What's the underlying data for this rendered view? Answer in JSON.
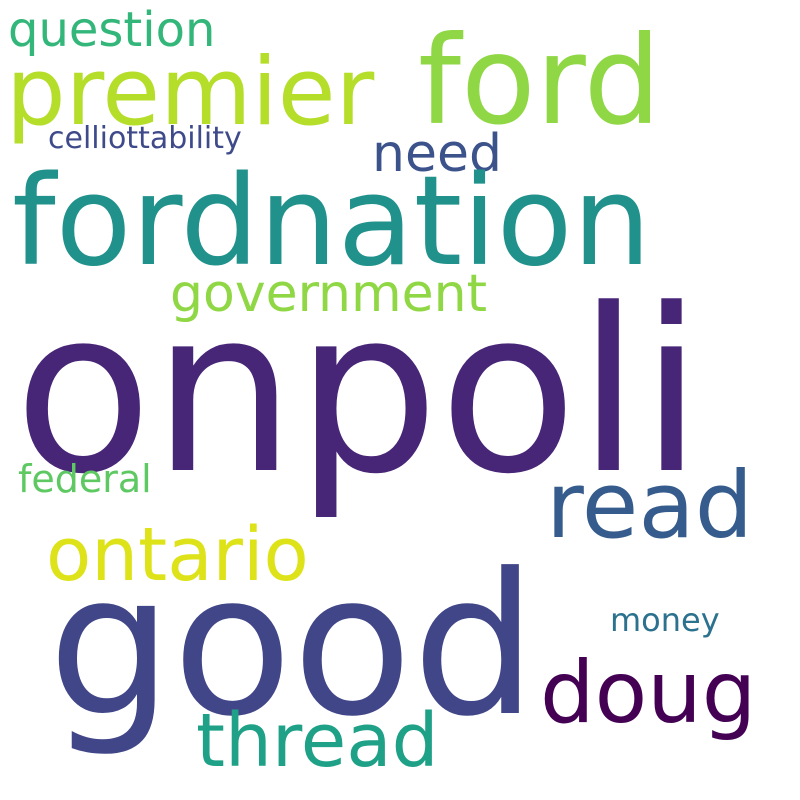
{
  "words": [
    {
      "text": "question",
      "color": "#33b679"
    },
    {
      "text": "ford",
      "color": "#8fd744"
    },
    {
      "text": "premier",
      "color": "#b5de2b"
    },
    {
      "text": "celliottability",
      "color": "#3e4a89"
    },
    {
      "text": "need",
      "color": "#3b528b"
    },
    {
      "text": "fordnation",
      "color": "#21918c"
    },
    {
      "text": "government",
      "color": "#8fd744"
    },
    {
      "text": "onpoli",
      "color": "#482677"
    },
    {
      "text": "federal",
      "color": "#5ec962"
    },
    {
      "text": "read",
      "color": "#365c8d"
    },
    {
      "text": "ontario",
      "color": "#dde318"
    },
    {
      "text": "good",
      "color": "#404688"
    },
    {
      "text": "money",
      "color": "#2c728e"
    },
    {
      "text": "doug",
      "color": "#440154"
    },
    {
      "text": "thread",
      "color": "#1fa187"
    }
  ]
}
